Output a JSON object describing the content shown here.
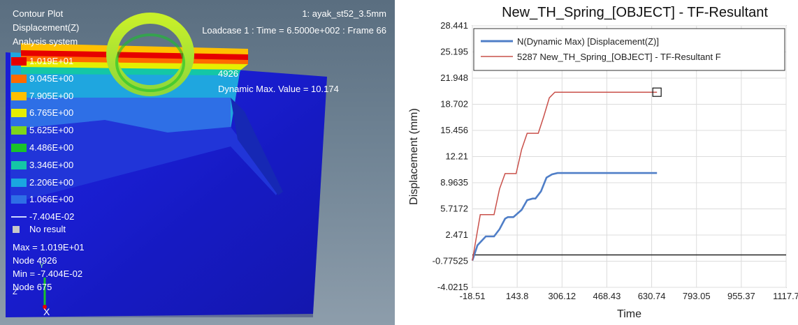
{
  "viewport": {
    "title_lines": [
      "Contour Plot",
      "Displacement(Z)",
      "Analysis system"
    ],
    "model_name": "1: ayak_st52_3.5mm",
    "loadcase_info": "Loadcase 1 : Time = 6.5000e+002 : Frame 66",
    "legend": [
      {
        "label": "1.019E+01",
        "color": "#e60000"
      },
      {
        "label": "9.045E+00",
        "color": "#ff6a00"
      },
      {
        "label": "7.905E+00",
        "color": "#ffc000"
      },
      {
        "label": "6.765E+00",
        "color": "#e6ee00"
      },
      {
        "label": "5.625E+00",
        "color": "#7ed41c"
      },
      {
        "label": "4.486E+00",
        "color": "#19c22b"
      },
      {
        "label": "3.346E+00",
        "color": "#14c7a6"
      },
      {
        "label": "2.206E+00",
        "color": "#1aa6e0"
      },
      {
        "label": "1.066E+00",
        "color": "#2e6ee6"
      },
      {
        "label": "-7.404E-02",
        "color": "#1a2fd0"
      }
    ],
    "no_result_label": "No result",
    "stats": [
      "Max = 1.019E+01",
      "Node 4926",
      "Min = -7.404E-02",
      "Node 675"
    ],
    "node_label": "4926",
    "dynamic_max_label": "Dynamic Max. Value =  10.174",
    "axis_triad": {
      "y": "Y",
      "z": "Z",
      "x": "X"
    }
  },
  "chart_data": {
    "type": "line",
    "title": "New_TH_Spring_[OBJECT] - TF-Resultant",
    "xlabel": "Time",
    "ylabel": "Displacement (mm)",
    "x_ticks": [
      "-18.51",
      "143.8",
      "306.12",
      "468.43",
      "630.74",
      "793.05",
      "955.37",
      "1117.7"
    ],
    "y_ticks": [
      "28.441",
      "25.195",
      "21.948",
      "18.702",
      "15.456",
      "12.21",
      "8.9635",
      "5.7172",
      "2.471",
      "-0.77525",
      "-4.0215"
    ],
    "xlim": [
      -18.51,
      1117.7
    ],
    "ylim": [
      -4.0215,
      28.441
    ],
    "grid": true,
    "legend_position": "top",
    "series": [
      {
        "name": "N(Dynamic Max) [Displacement(Z)]",
        "color": "#4f7ec7",
        "x": [
          -18.51,
          0,
          30,
          60,
          80,
          100,
          110,
          130,
          160,
          180,
          200,
          210,
          230,
          250,
          270,
          290,
          300,
          650
        ],
        "y": [
          -0.7,
          1.2,
          2.3,
          2.3,
          3.2,
          4.5,
          4.7,
          4.7,
          5.6,
          6.8,
          7.0,
          7.0,
          7.9,
          9.6,
          10.0,
          10.17,
          10.17,
          10.17
        ]
      },
      {
        "name": "5287 New_TH_Spring_[OBJECT] - TF-Resultant F",
        "color": "#c9504a",
        "x": [
          -18.51,
          0,
          10,
          60,
          80,
          100,
          140,
          160,
          180,
          220,
          240,
          260,
          280,
          650
        ],
        "y": [
          -0.7,
          3.0,
          5.0,
          5.0,
          8.2,
          10.1,
          10.1,
          13.1,
          15.1,
          15.1,
          17.2,
          19.5,
          20.2,
          20.2
        ]
      }
    ],
    "marker_point": {
      "x": 650,
      "y": 20.2
    }
  }
}
